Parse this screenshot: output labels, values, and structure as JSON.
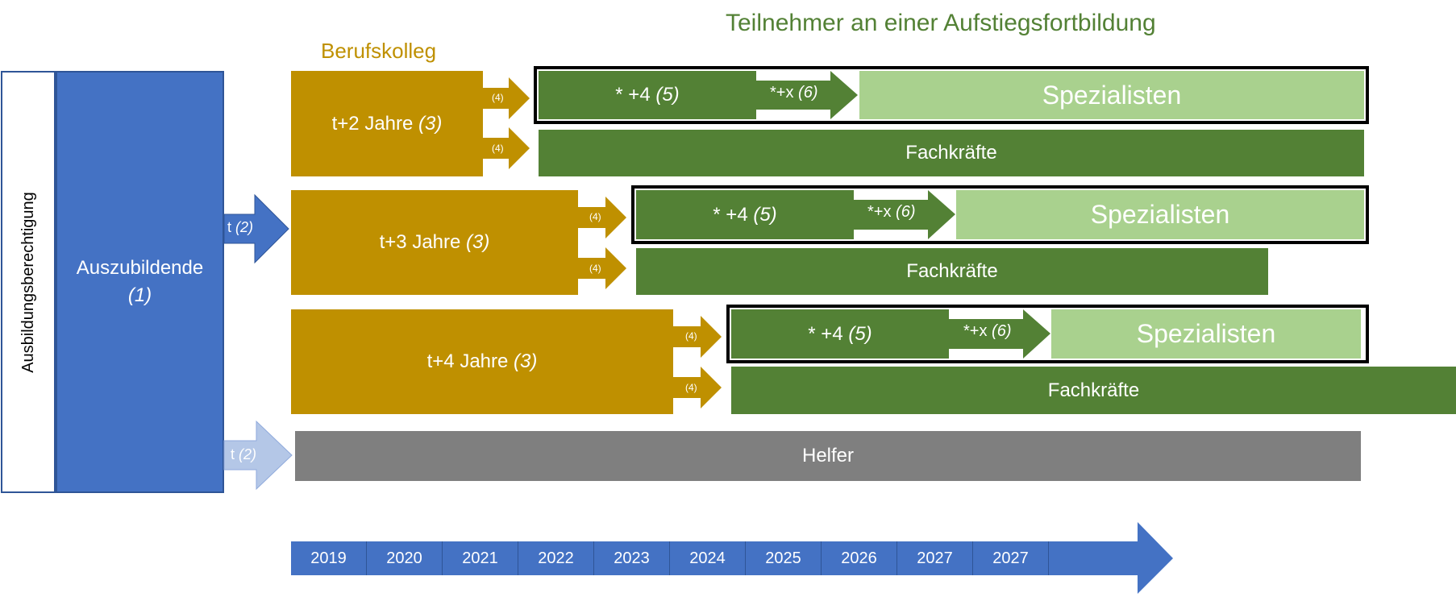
{
  "header": {
    "title": "Teilnehmer an einer Aufstiegsfortbildung",
    "berufskolleg": "Berufskolleg"
  },
  "left": {
    "vertical_label": "Ausbildungsberechtigung",
    "auszubildende_label": "Auszubildende",
    "auszubildende_note": "(1)"
  },
  "arrows": {
    "t_label": "t",
    "t_note": "(2)",
    "small_note": "(4)",
    "plus_x_label": "*+x",
    "plus_x_note": "(6)"
  },
  "rows": [
    {
      "duration_label": "t+2 Jahre",
      "duration_note": "(3)",
      "plus4_label": "* +4",
      "plus4_note": "(5)",
      "specialist_label": "Spezialisten",
      "fachkraefte_label": "Fachkräfte"
    },
    {
      "duration_label": "t+3 Jahre",
      "duration_note": "(3)",
      "plus4_label": "* +4",
      "plus4_note": "(5)",
      "specialist_label": "Spezialisten",
      "fachkraefte_label": "Fachkräfte"
    },
    {
      "duration_label": "t+4 Jahre",
      "duration_note": "(3)",
      "plus4_label": "* +4",
      "plus4_note": "(5)",
      "specialist_label": "Spezialisten",
      "fachkraefte_label": "Fachkräfte"
    }
  ],
  "helfer_label": "Helfer",
  "timeline": {
    "years": [
      "2019",
      "2020",
      "2021",
      "2022",
      "2023",
      "2024",
      "2025",
      "2026",
      "2027",
      "2027"
    ]
  },
  "colors": {
    "gold": "#bf9000",
    "green": "#538135",
    "light_green": "#a9d18e",
    "blue": "#4472c4",
    "light_blue": "#b4c7e7",
    "grey": "#7f7f7f"
  }
}
